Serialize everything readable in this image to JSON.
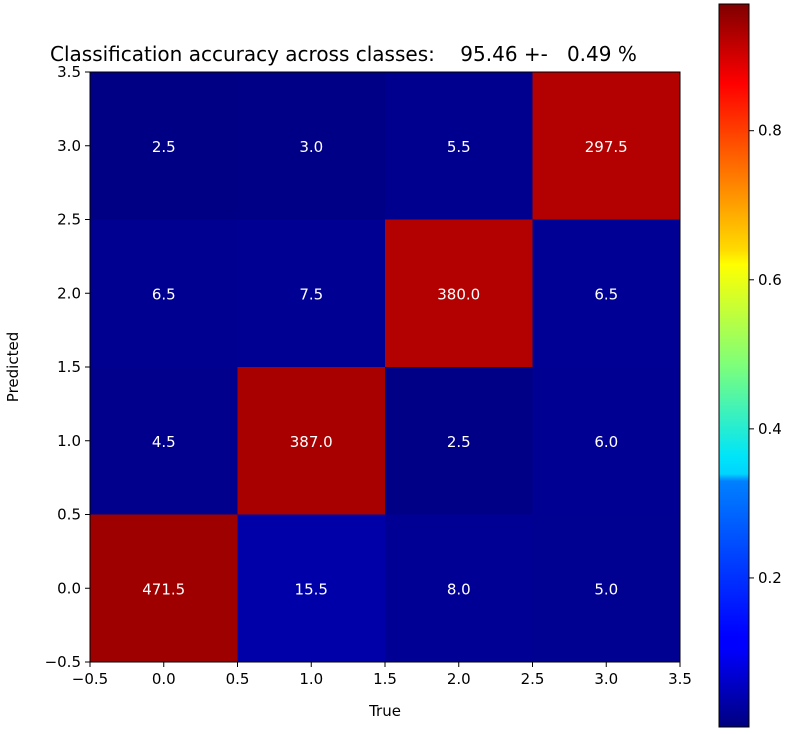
{
  "chart_data": {
    "type": "heatmap",
    "title": "Classification accuracy across classes:    95.46 +-   0.49 %",
    "xlabel": "True",
    "ylabel": "Predicted",
    "x_categories": [
      "0.0",
      "1.0",
      "2.0",
      "3.0"
    ],
    "y_categories": [
      "0.0",
      "1.0",
      "2.0",
      "3.0"
    ],
    "xlim": [
      -0.5,
      3.5
    ],
    "ylim": [
      -0.5,
      3.5
    ],
    "x_ticks": [
      "−0.5",
      "0.0",
      "0.5",
      "1.0",
      "1.5",
      "2.0",
      "2.5",
      "3.0",
      "3.5"
    ],
    "y_ticks": [
      "−0.5",
      "0.0",
      "0.5",
      "1.0",
      "1.5",
      "2.0",
      "2.5",
      "3.0",
      "3.5"
    ],
    "cells": [
      {
        "x": 0,
        "y": 0,
        "label": "471.5",
        "norm": 0.97
      },
      {
        "x": 1,
        "y": 0,
        "label": "15.5",
        "norm": 0.04
      },
      {
        "x": 2,
        "y": 0,
        "label": "8.0",
        "norm": 0.02
      },
      {
        "x": 3,
        "y": 0,
        "label": "5.0",
        "norm": 0.017
      },
      {
        "x": 0,
        "y": 1,
        "label": "4.5",
        "norm": 0.012
      },
      {
        "x": 1,
        "y": 1,
        "label": "387.0",
        "norm": 0.96
      },
      {
        "x": 2,
        "y": 1,
        "label": "2.5",
        "norm": 0.006
      },
      {
        "x": 3,
        "y": 1,
        "label": "6.0",
        "norm": 0.019
      },
      {
        "x": 0,
        "y": 2,
        "label": "6.5",
        "norm": 0.016
      },
      {
        "x": 1,
        "y": 2,
        "label": "7.5",
        "norm": 0.019
      },
      {
        "x": 2,
        "y": 2,
        "label": "380.0",
        "norm": 0.95
      },
      {
        "x": 3,
        "y": 2,
        "label": "6.5",
        "norm": 0.021
      },
      {
        "x": 0,
        "y": 3,
        "label": "2.5",
        "norm": 0.005
      },
      {
        "x": 1,
        "y": 3,
        "label": "3.0",
        "norm": 0.007
      },
      {
        "x": 2,
        "y": 3,
        "label": "5.5",
        "norm": 0.014
      },
      {
        "x": 3,
        "y": 3,
        "label": "297.5",
        "norm": 0.95
      }
    ],
    "colormap": "jet",
    "colorbar": {
      "range": [
        0,
        0.97
      ],
      "ticks": [
        "0.2",
        "0.4",
        "0.6",
        "0.8"
      ],
      "tick_values": [
        0.2,
        0.4,
        0.6,
        0.8
      ]
    },
    "grid": false
  }
}
